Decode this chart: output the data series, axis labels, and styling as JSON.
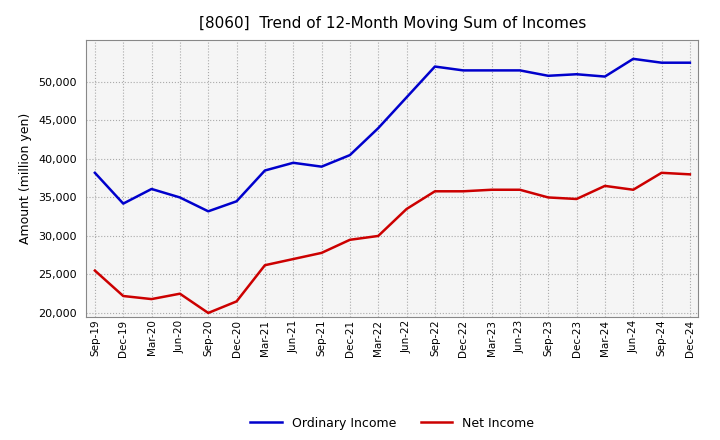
{
  "title": "[8060]  Trend of 12-Month Moving Sum of Incomes",
  "ylabel": "Amount (million yen)",
  "ylim": [
    19500,
    55500
  ],
  "yticks": [
    20000,
    25000,
    30000,
    35000,
    40000,
    45000,
    50000
  ],
  "background_color": "#ffffff",
  "plot_bg_color": "#f5f5f5",
  "grid_color": "#aaaaaa",
  "ordinary_income_color": "#0000cc",
  "net_income_color": "#cc0000",
  "x_labels": [
    "Sep-19",
    "Dec-19",
    "Mar-20",
    "Jun-20",
    "Sep-20",
    "Dec-20",
    "Mar-21",
    "Jun-21",
    "Sep-21",
    "Dec-21",
    "Mar-22",
    "Jun-22",
    "Sep-22",
    "Dec-22",
    "Mar-23",
    "Jun-23",
    "Sep-23",
    "Dec-23",
    "Mar-24",
    "Jun-24",
    "Sep-24",
    "Dec-24"
  ],
  "ordinary_income": [
    38200,
    34200,
    36100,
    35000,
    33200,
    34500,
    38500,
    39500,
    39000,
    40500,
    44000,
    48000,
    52000,
    51500,
    51500,
    51500,
    50800,
    51000,
    50700,
    53000,
    52500,
    52500
  ],
  "net_income": [
    25500,
    22200,
    21800,
    22500,
    20000,
    21500,
    26200,
    27000,
    27800,
    29500,
    30000,
    33500,
    35800,
    35800,
    36000,
    36000,
    35000,
    34800,
    36500,
    36000,
    38200,
    38000
  ]
}
